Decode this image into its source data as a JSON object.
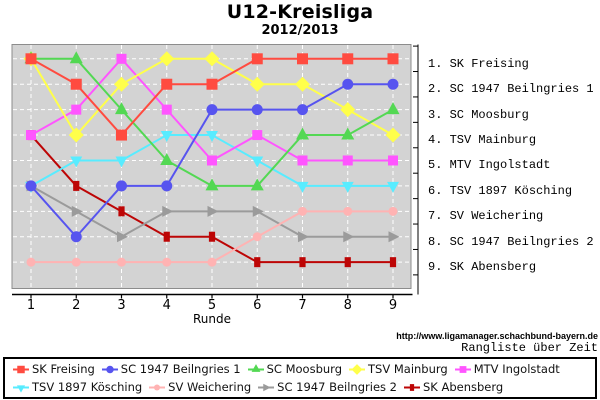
{
  "title": "U12-Kreisliga",
  "subtitle": "2012/2013",
  "x_axis": {
    "label": "Runde",
    "ticks": [
      "1",
      "2",
      "3",
      "4",
      "5",
      "6",
      "7",
      "8",
      "9"
    ]
  },
  "standings": [
    "1. SK Freising",
    "2. SC 1947 Beilngries 1",
    "3. SC Moosburg",
    "4. TSV Mainburg",
    "5. MTV Ingolstadt",
    "6. TSV 1897 Kösching",
    "7. SV Weichering",
    "8. SC 1947 Beilngries 2",
    "9. SK Abensberg"
  ],
  "footer": {
    "url": "http://www.ligamanager.schachbund-bayern.de",
    "caption": "Rangliste über Zeit"
  },
  "colors": {
    "plot_bg": "#d3d3d3",
    "grid": "#ffffff",
    "plot_border": "#8c8c8c",
    "axis": "#000000"
  },
  "chart_data": {
    "type": "line",
    "title": "U12-Kreisliga",
    "subtitle": "2012/2013",
    "xlabel": "Runde",
    "ylabel": "",
    "x": [
      1,
      2,
      3,
      4,
      5,
      6,
      7,
      8,
      9
    ],
    "ylim": [
      1,
      9
    ],
    "y_inverted": true,
    "y_meaning": "Tabellenplatz (1 = oben)",
    "grid": true,
    "legend_position": "bottom",
    "series": [
      {
        "name": "SK Freising",
        "color": "#ff4b40",
        "marker": "square",
        "size": 11,
        "values": [
          1,
          2,
          4,
          2,
          2,
          1,
          1,
          1,
          1
        ]
      },
      {
        "name": "SC 1947 Beilngries 1",
        "color": "#5754ef",
        "marker": "circle",
        "size": 11,
        "values": [
          6,
          8,
          6,
          6,
          3,
          3,
          3,
          2,
          2
        ]
      },
      {
        "name": "SC Moosburg",
        "color": "#53d853",
        "marker": "triangle-up",
        "size": 13,
        "values": [
          1,
          1,
          3,
          5,
          6,
          6,
          4,
          4,
          3
        ]
      },
      {
        "name": "TSV Mainburg",
        "color": "#ffff4a",
        "marker": "diamond",
        "size": 13,
        "values": [
          1,
          4,
          2,
          1,
          1,
          2,
          2,
          3,
          4
        ]
      },
      {
        "name": "MTV Ingolstadt",
        "color": "#ff55ff",
        "marker": "square",
        "size": 10,
        "values": [
          4,
          3,
          1,
          3,
          5,
          4,
          5,
          5,
          5
        ]
      },
      {
        "name": "TSV 1897 Kösching",
        "color": "#58ecff",
        "marker": "triangle-down",
        "size": 12,
        "values": [
          6,
          5,
          5,
          4,
          4,
          5,
          6,
          6,
          6
        ]
      },
      {
        "name": "SV Weichering",
        "color": "#ffb3b3",
        "marker": "circle",
        "size": 9,
        "values": [
          9,
          9,
          9,
          9,
          9,
          8,
          7,
          7,
          7
        ]
      },
      {
        "name": "SC 1947 Beilngries 2",
        "color": "#9b9b9b",
        "marker": "triangle-right",
        "size": 11,
        "values": [
          6,
          7,
          8,
          7,
          7,
          7,
          8,
          8,
          8
        ]
      },
      {
        "name": "SK Abensberg",
        "color": "#bd0505",
        "marker": "square-tall",
        "size": 10,
        "values": [
          4,
          6,
          7,
          8,
          8,
          9,
          9,
          9,
          9
        ]
      }
    ]
  }
}
